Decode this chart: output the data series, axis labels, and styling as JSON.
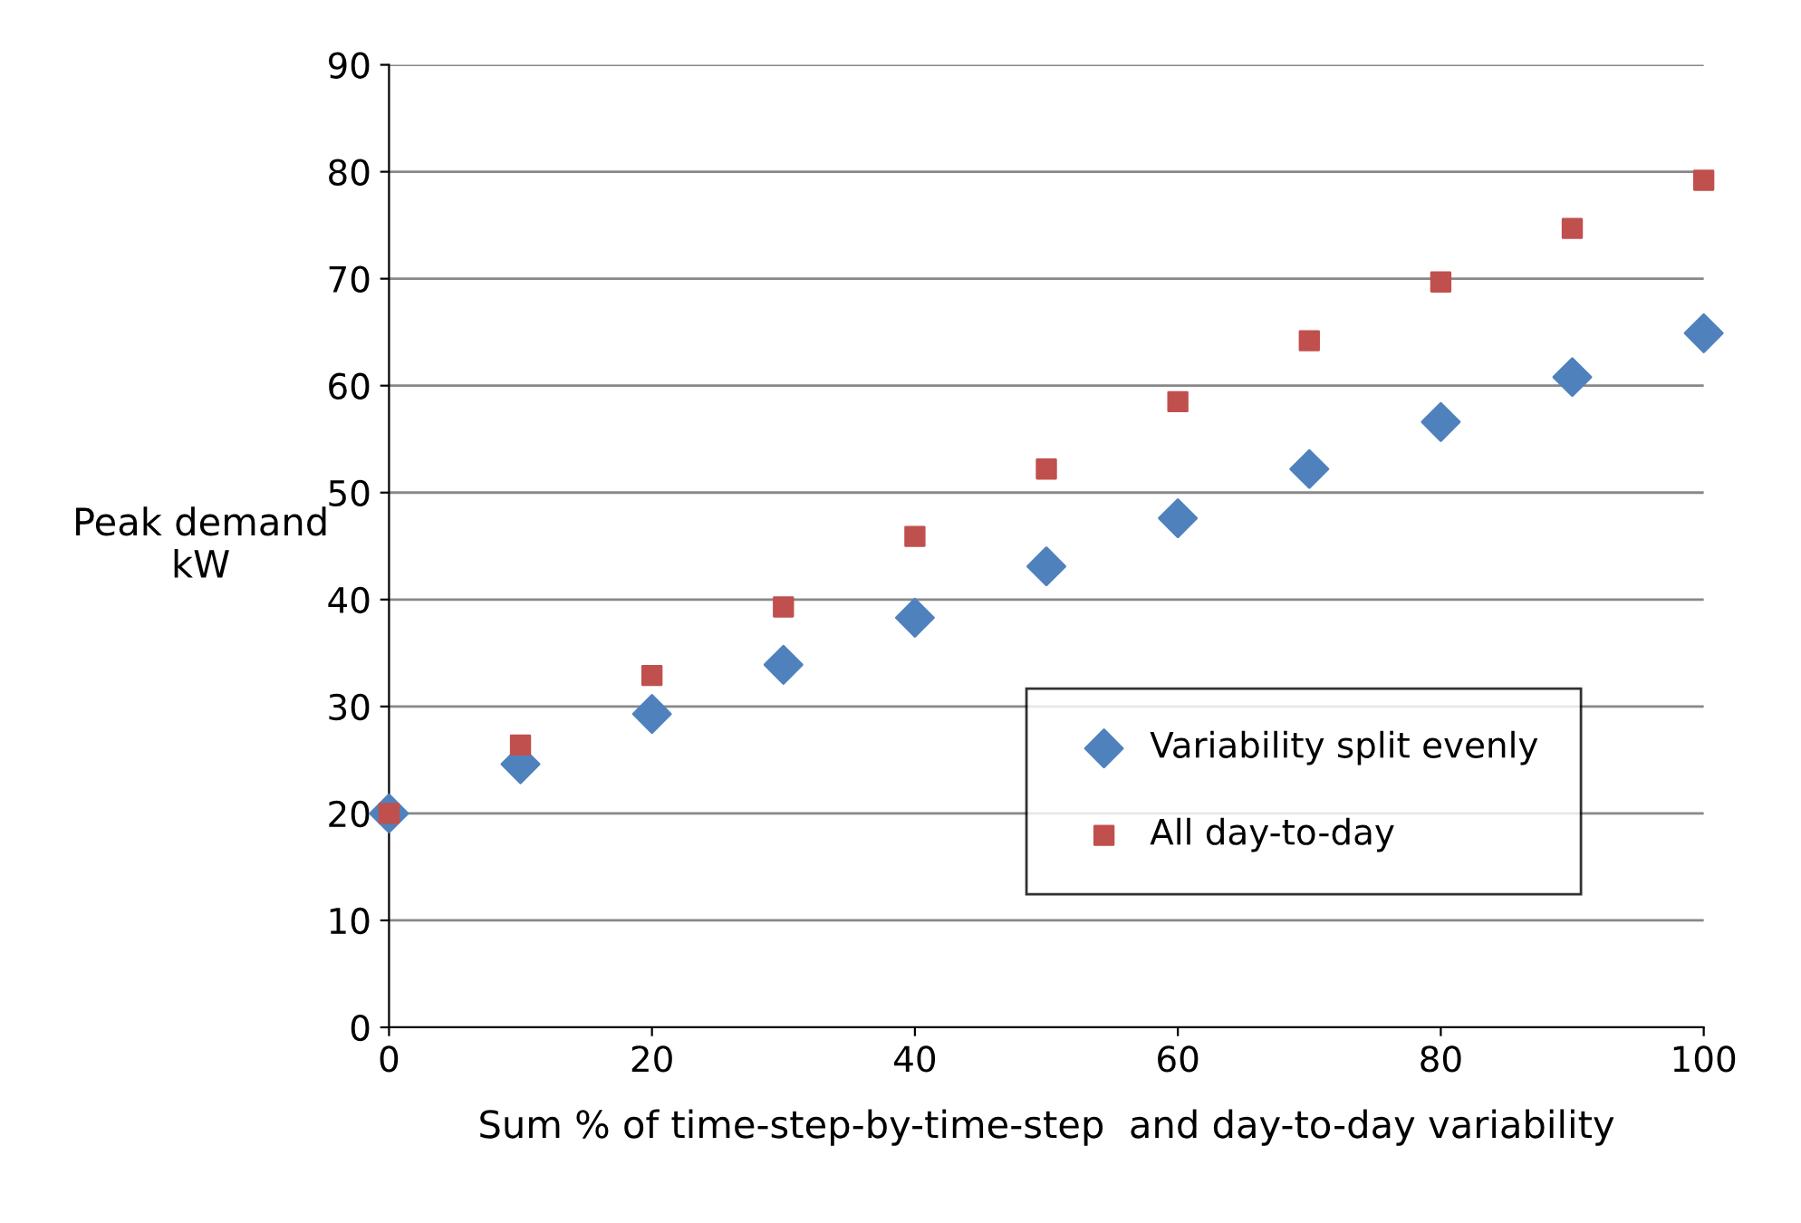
{
  "chart_data": {
    "type": "scatter",
    "xlabel": "Sum % of time-step-by-time-step  and day-to-day variability",
    "ylabel": "Peak demand\nkW",
    "x": [
      0,
      10,
      20,
      30,
      40,
      50,
      60,
      70,
      80,
      90,
      100
    ],
    "series": [
      {
        "name": "Variability split evenly",
        "color": "#4f81bd",
        "marker": "diamond",
        "values": [
          20,
          24.6,
          29.3,
          33.9,
          38.3,
          43.1,
          47.6,
          52.2,
          56.6,
          60.8,
          64.9
        ]
      },
      {
        "name": "All day-to-day",
        "color": "#c0504d",
        "marker": "square",
        "values": [
          20,
          26.4,
          32.9,
          39.3,
          45.9,
          52.2,
          58.5,
          64.2,
          69.7,
          74.7,
          79.2
        ]
      }
    ],
    "xlim": [
      0,
      100
    ],
    "xticks": [
      0,
      20,
      40,
      60,
      80,
      100
    ],
    "ylim": [
      0,
      90
    ],
    "yticks": [
      0,
      10,
      20,
      30,
      40,
      50,
      60,
      70,
      80,
      90
    ],
    "grid": "y",
    "legend": "bottom right"
  }
}
